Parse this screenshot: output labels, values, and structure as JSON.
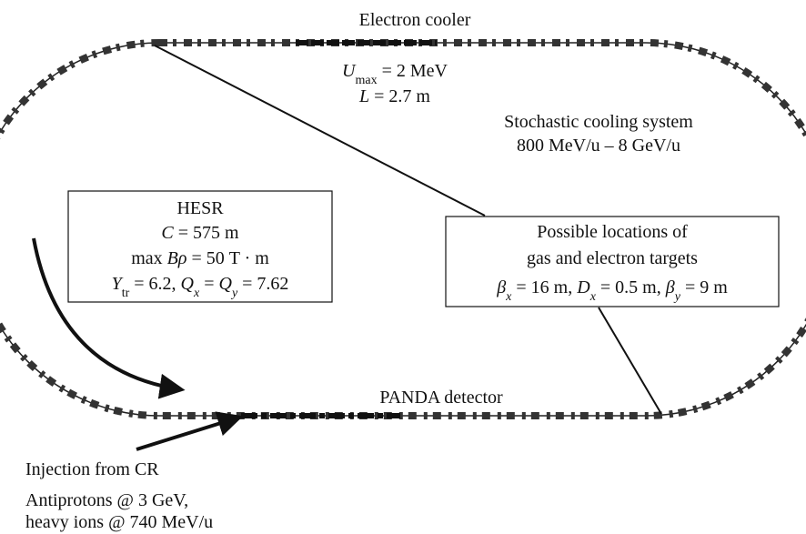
{
  "electron_cooler": {
    "title": "Electron cooler",
    "umax": [
      "U",
      "max",
      " = 2 MeV"
    ],
    "length": [
      "L",
      " = 2.7 m"
    ]
  },
  "stochastic": {
    "title": "Stochastic cooling system",
    "range": "800 MeV/u – 8 GeV/u"
  },
  "hesr_box": {
    "title": "HESR",
    "circumference": [
      "C",
      " = 575 m"
    ],
    "rigidity": [
      "max ",
      "Bρ",
      " = 50 T · m"
    ],
    "tunes": [
      "Y",
      "tr",
      " = 6.2, ",
      "Q",
      "x",
      " = ",
      "Q",
      "y",
      " = 7.62"
    ]
  },
  "targets_box": {
    "line1": "Possible locations of",
    "line2": "gas and electron targets",
    "optics": [
      "β",
      "x",
      " = 16 m, ",
      "D",
      "x",
      " = 0.5 m, ",
      "β",
      "y",
      " = 9 m"
    ]
  },
  "panda": "PANDA detector",
  "injection": {
    "title": "Injection from CR",
    "line1": "Antiprotons @ 3 GeV,",
    "line2": "heavy ions @ 740 MeV/u"
  }
}
